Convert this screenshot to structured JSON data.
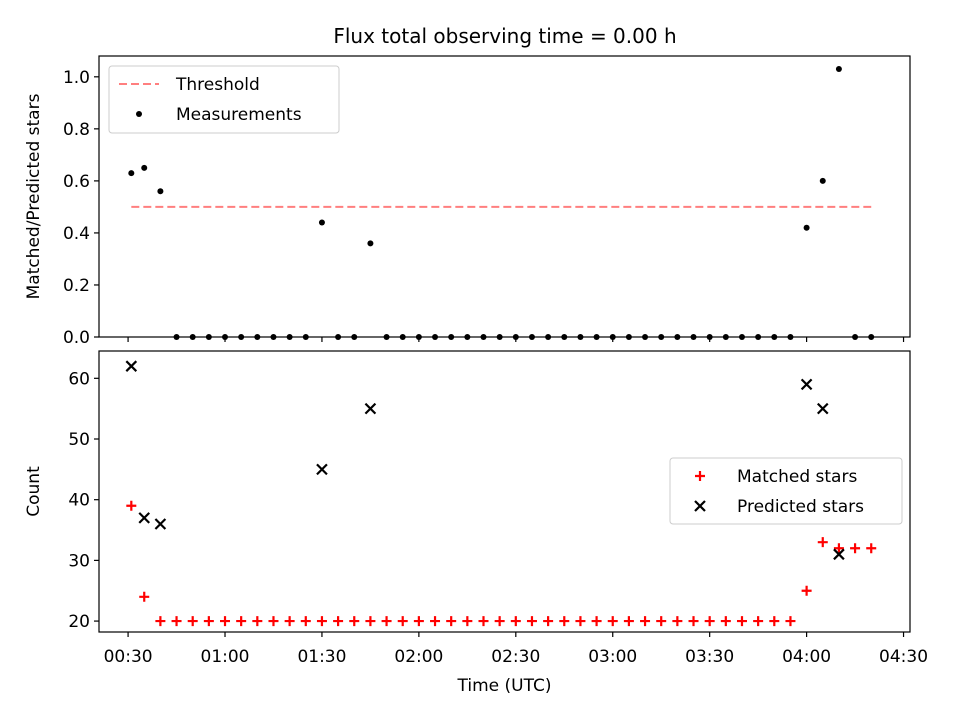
{
  "title": "Flux total observing time = 0.00 h",
  "chart_data": [
    {
      "type": "scatter",
      "ylabel": "Matched/Predicted stars",
      "ylim": [
        0,
        1.08
      ],
      "xlim": [
        "00:21",
        "04:32"
      ],
      "yticks": [
        "0.0",
        "0.2",
        "0.4",
        "0.6",
        "0.8",
        "1.0"
      ],
      "ytick_values": [
        0,
        0.2,
        0.4,
        0.6,
        0.8,
        1.0
      ],
      "legend_position": "upper-left",
      "threshold": {
        "name": "Threshold",
        "value": 0.5,
        "x_from": "00:31",
        "x_to": "04:20",
        "color": "#ff7f7f",
        "style": "dashed"
      },
      "series": [
        {
          "name": "Measurements",
          "color": "#000000",
          "marker": "dot",
          "x": [
            "00:31",
            "00:35",
            "00:40",
            "00:45",
            "00:50",
            "00:55",
            "01:00",
            "01:05",
            "01:10",
            "01:15",
            "01:20",
            "01:25",
            "01:30",
            "01:35",
            "01:40",
            "01:45",
            "01:50",
            "01:55",
            "02:00",
            "02:05",
            "02:10",
            "02:15",
            "02:20",
            "02:25",
            "02:30",
            "02:35",
            "02:40",
            "02:45",
            "02:50",
            "02:55",
            "03:00",
            "03:05",
            "03:10",
            "03:15",
            "03:20",
            "03:25",
            "03:30",
            "03:35",
            "03:40",
            "03:45",
            "03:50",
            "03:55",
            "04:00",
            "04:05",
            "04:10",
            "04:15",
            "04:20"
          ],
          "y": [
            0.63,
            0.65,
            0.56,
            0,
            0,
            0,
            0,
            0,
            0,
            0,
            0,
            0,
            0.44,
            0,
            0,
            0.36,
            0,
            0,
            0,
            0,
            0,
            0,
            0,
            0,
            0,
            0,
            0,
            0,
            0,
            0,
            0,
            0,
            0,
            0,
            0,
            0,
            0,
            0,
            0,
            0,
            0,
            0,
            0.42,
            0.6,
            1.03,
            0,
            0
          ]
        }
      ]
    },
    {
      "type": "scatter",
      "xlabel": "Time (UTC)",
      "ylabel": "Count",
      "ylim": [
        18.2,
        64.5
      ],
      "xlim": [
        "00:21",
        "04:32"
      ],
      "xticks": [
        "00:30",
        "01:00",
        "01:30",
        "02:00",
        "02:30",
        "03:00",
        "03:30",
        "04:00",
        "04:30"
      ],
      "yticks": [
        "20",
        "30",
        "40",
        "50",
        "60"
      ],
      "ytick_values": [
        20,
        30,
        40,
        50,
        60
      ],
      "legend_position": "center-right",
      "series": [
        {
          "name": "Matched stars",
          "color": "#ff0000",
          "marker": "plus",
          "x": [
            "00:31",
            "00:35",
            "00:40",
            "00:45",
            "00:50",
            "00:55",
            "01:00",
            "01:05",
            "01:10",
            "01:15",
            "01:20",
            "01:25",
            "01:30",
            "01:35",
            "01:40",
            "01:45",
            "01:50",
            "01:55",
            "02:00",
            "02:05",
            "02:10",
            "02:15",
            "02:20",
            "02:25",
            "02:30",
            "02:35",
            "02:40",
            "02:45",
            "02:50",
            "02:55",
            "03:00",
            "03:05",
            "03:10",
            "03:15",
            "03:20",
            "03:25",
            "03:30",
            "03:35",
            "03:40",
            "03:45",
            "03:50",
            "03:55",
            "04:00",
            "04:05",
            "04:10",
            "04:15",
            "04:20"
          ],
          "y": [
            39,
            24,
            20,
            20,
            20,
            20,
            20,
            20,
            20,
            20,
            20,
            20,
            20,
            20,
            20,
            20,
            20,
            20,
            20,
            20,
            20,
            20,
            20,
            20,
            20,
            20,
            20,
            20,
            20,
            20,
            20,
            20,
            20,
            20,
            20,
            20,
            20,
            20,
            20,
            20,
            20,
            20,
            25,
            33,
            32,
            32,
            32
          ]
        },
        {
          "name": "Predicted stars",
          "color": "#000000",
          "marker": "x",
          "x": [
            "00:31",
            "00:35",
            "00:40",
            "01:30",
            "01:45",
            "04:00",
            "04:05",
            "04:10"
          ],
          "y": [
            62,
            37,
            36,
            45,
            55,
            59,
            55,
            31
          ]
        }
      ]
    }
  ]
}
